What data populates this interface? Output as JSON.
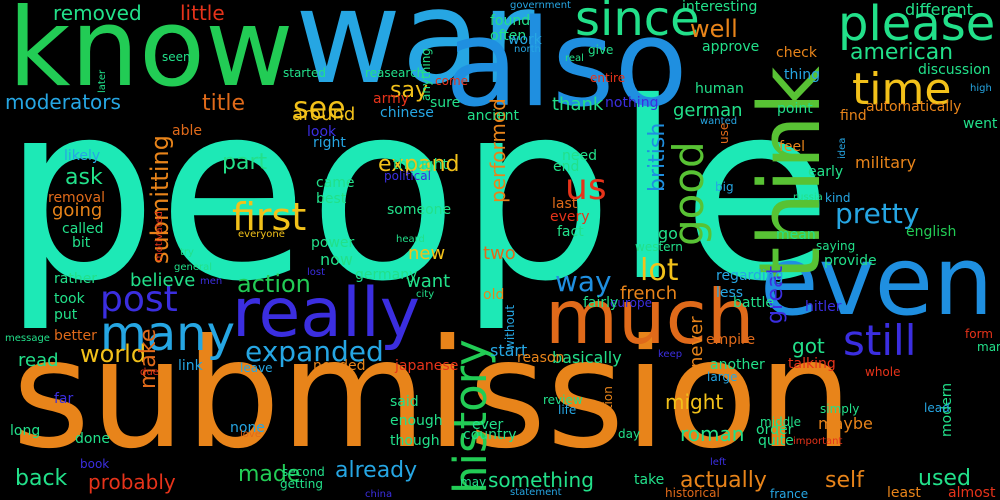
{
  "words": [
    {
      "text": "people",
      "color": "#1de9b6"
    },
    {
      "text": "submission",
      "color": "#e8841a"
    },
    {
      "text": "war",
      "color": "#26a6e3"
    },
    {
      "text": "know",
      "color": "#22cc55"
    },
    {
      "text": "also",
      "color": "#1f8fe0"
    },
    {
      "text": "even",
      "color": "#1f8fe0"
    },
    {
      "text": "think",
      "color": "#58c234"
    },
    {
      "text": "much",
      "color": "#e06a1a"
    },
    {
      "text": "really",
      "color": "#3b2ee0"
    },
    {
      "text": "since",
      "color": "#22e08a"
    },
    {
      "text": "please",
      "color": "#22e08a"
    },
    {
      "text": "time",
      "color": "#f2c11a"
    },
    {
      "text": "history",
      "color": "#22cc55"
    },
    {
      "text": "many",
      "color": "#26a6e3"
    },
    {
      "text": "post",
      "color": "#3b2ee0"
    },
    {
      "text": "still",
      "color": "#3b2ee0"
    },
    {
      "text": "first",
      "color": "#f2c11a"
    },
    {
      "text": "good",
      "color": "#58c234"
    },
    {
      "text": "us",
      "color": "#e6331a"
    },
    {
      "text": "see",
      "color": "#f2c11a"
    },
    {
      "text": "pretty",
      "color": "#26a6e3"
    },
    {
      "text": "expanded",
      "color": "#26a6e3"
    },
    {
      "text": "action",
      "color": "#22cc55"
    },
    {
      "text": "lot",
      "color": "#f2c11a"
    },
    {
      "text": "way",
      "color": "#1f8fe0"
    },
    {
      "text": "world",
      "color": "#f2c11a"
    },
    {
      "text": "moderators",
      "color": "#26a6e3"
    },
    {
      "text": "removed",
      "color": "#22e08a"
    },
    {
      "text": "little",
      "color": "#e6331a"
    },
    {
      "text": "well",
      "color": "#e8841a"
    },
    {
      "text": "american",
      "color": "#22e08a"
    },
    {
      "text": "say",
      "color": "#f2c11a"
    },
    {
      "text": "title",
      "color": "#e06a1a"
    },
    {
      "text": "ask",
      "color": "#22e08a"
    },
    {
      "text": "part",
      "color": "#22e08a"
    },
    {
      "text": "submitting",
      "color": "#e8841a"
    },
    {
      "text": "expand",
      "color": "#f2c11a"
    },
    {
      "text": "performed",
      "color": "#e8841a"
    },
    {
      "text": "british",
      "color": "#1f8fe0"
    },
    {
      "text": "german",
      "color": "#22e08a"
    },
    {
      "text": "thank",
      "color": "#22e08a"
    },
    {
      "text": "around",
      "color": "#f2c11a"
    },
    {
      "text": "going",
      "color": "#e8841a"
    },
    {
      "text": "believe",
      "color": "#22e08a"
    },
    {
      "text": "read",
      "color": "#22e08a"
    },
    {
      "text": "make",
      "color": "#e06a1a"
    },
    {
      "text": "back",
      "color": "#22e08a"
    },
    {
      "text": "probably",
      "color": "#e6331a"
    },
    {
      "text": "made",
      "color": "#22cc55"
    },
    {
      "text": "already",
      "color": "#26a6e3"
    },
    {
      "text": "something",
      "color": "#22e08a"
    },
    {
      "text": "actually",
      "color": "#e8841a"
    },
    {
      "text": "self",
      "color": "#e8841a"
    },
    {
      "text": "used",
      "color": "#22e08a"
    },
    {
      "text": "might",
      "color": "#f2c11a"
    },
    {
      "text": "roman",
      "color": "#22e08a"
    },
    {
      "text": "great",
      "color": "#3b2ee0"
    },
    {
      "text": "never",
      "color": "#e8841a"
    },
    {
      "text": "got",
      "color": "#22e08a"
    },
    {
      "text": "french",
      "color": "#e8841a"
    },
    {
      "text": "want",
      "color": "#22e08a"
    },
    {
      "text": "two",
      "color": "#e06a1a"
    },
    {
      "text": "now",
      "color": "#22e08a"
    },
    {
      "text": "new",
      "color": "#f2c11a"
    },
    {
      "text": "go",
      "color": "#22e08a"
    },
    {
      "text": "military",
      "color": "#e8841a"
    },
    {
      "text": "different",
      "color": "#22e08a"
    },
    {
      "text": "discussion",
      "color": "#22e08a"
    },
    {
      "text": "english",
      "color": "#22cc55"
    },
    {
      "text": "basically",
      "color": "#22e08a"
    },
    {
      "text": "another",
      "color": "#22e08a"
    },
    {
      "text": "hitler",
      "color": "#3b2ee0"
    },
    {
      "text": "empire",
      "color": "#e06a1a"
    },
    {
      "text": "battle",
      "color": "#22e08a"
    },
    {
      "text": "maybe",
      "color": "#e8841a"
    },
    {
      "text": "order",
      "color": "#22e08a"
    },
    {
      "text": "quite",
      "color": "#22e08a"
    },
    {
      "text": "modern",
      "color": "#22e08a"
    },
    {
      "text": "least",
      "color": "#e8841a"
    },
    {
      "text": "almost",
      "color": "#e6331a"
    },
    {
      "text": "found",
      "color": "#22e08a"
    },
    {
      "text": "often",
      "color": "#22e08a"
    },
    {
      "text": "interesting",
      "color": "#22e08a"
    },
    {
      "text": "approve",
      "color": "#22e08a"
    },
    {
      "text": "check",
      "color": "#e8841a"
    },
    {
      "text": "thing",
      "color": "#26a6e3"
    },
    {
      "text": "point",
      "color": "#22e08a"
    },
    {
      "text": "find",
      "color": "#e8841a"
    },
    {
      "text": "feel",
      "color": "#e8841a"
    },
    {
      "text": "mean",
      "color": "#22e08a"
    },
    {
      "text": "provide",
      "color": "#22e08a"
    },
    {
      "text": "regarding",
      "color": "#26a6e3"
    },
    {
      "text": "less",
      "color": "#26a6e3"
    },
    {
      "text": "went",
      "color": "#22e08a"
    },
    {
      "text": "high",
      "color": "#26a6e3"
    },
    {
      "text": "automatically",
      "color": "#e8841a"
    },
    {
      "text": "human",
      "color": "#22e08a"
    },
    {
      "text": "wanted",
      "color": "#26a6e3"
    },
    {
      "text": "use",
      "color": "#e06a1a"
    },
    {
      "text": "idea",
      "color": "#26a6e3"
    },
    {
      "text": "early",
      "color": "#22e08a"
    },
    {
      "text": "kind",
      "color": "#26a6e3"
    },
    {
      "text": "saying",
      "color": "#22e08a"
    },
    {
      "text": "big",
      "color": "#26a6e3"
    },
    {
      "text": "russia",
      "color": "#22e08a"
    },
    {
      "text": "western",
      "color": "#22e08a"
    },
    {
      "text": "europe",
      "color": "#3b2ee0"
    },
    {
      "text": "fairly",
      "color": "#22e08a"
    },
    {
      "text": "keep",
      "color": "#3b2ee0"
    },
    {
      "text": "talking",
      "color": "#e6331a"
    },
    {
      "text": "large",
      "color": "#26a6e3"
    },
    {
      "text": "whole",
      "color": "#e6331a"
    },
    {
      "text": "simply",
      "color": "#22e08a"
    },
    {
      "text": "lead",
      "color": "#26a6e3"
    },
    {
      "text": "form",
      "color": "#e6331a"
    },
    {
      "text": "man",
      "color": "#22e08a"
    },
    {
      "text": "life",
      "color": "#26a6e3"
    },
    {
      "text": "review",
      "color": "#22e08a"
    },
    {
      "text": "middle",
      "color": "#22e08a"
    },
    {
      "text": "day",
      "color": "#22e08a"
    },
    {
      "text": "important",
      "color": "#e6331a"
    },
    {
      "text": "question",
      "color": "#e8841a"
    },
    {
      "text": "take",
      "color": "#22e08a"
    },
    {
      "text": "left",
      "color": "#3b2ee0"
    },
    {
      "text": "historical",
      "color": "#e06a1a"
    },
    {
      "text": "france",
      "color": "#26a6e3"
    },
    {
      "text": "statement",
      "color": "#26a6e3"
    },
    {
      "text": "may",
      "color": "#22e08a"
    },
    {
      "text": "getting",
      "color": "#22e08a"
    },
    {
      "text": "china",
      "color": "#3b2ee0"
    },
    {
      "text": "second",
      "color": "#22e08a"
    },
    {
      "text": "book",
      "color": "#3b2ee0"
    },
    {
      "text": "long",
      "color": "#22e08a"
    },
    {
      "text": "far",
      "color": "#3b2ee0"
    },
    {
      "text": "done",
      "color": "#22e08a"
    },
    {
      "text": "none",
      "color": "#26a6e3"
    },
    {
      "text": "love",
      "color": "#e06a1a"
    },
    {
      "text": "said",
      "color": "#22e08a"
    },
    {
      "text": "enough",
      "color": "#22e08a"
    },
    {
      "text": "though",
      "color": "#22e08a"
    },
    {
      "text": "ever",
      "color": "#22e08a"
    },
    {
      "text": "country",
      "color": "#22e08a"
    },
    {
      "text": "japanese",
      "color": "#e6331a"
    },
    {
      "text": "needed",
      "color": "#e8841a"
    },
    {
      "text": "leave",
      "color": "#26a6e3"
    },
    {
      "text": "start",
      "color": "#26a6e3"
    },
    {
      "text": "reason",
      "color": "#e8841a"
    },
    {
      "text": "without",
      "color": "#26a6e3"
    },
    {
      "text": "old",
      "color": "#e8841a"
    },
    {
      "text": "link",
      "color": "#26a6e3"
    },
    {
      "text": "due",
      "color": "#e6331a"
    },
    {
      "text": "message",
      "color": "#22e08a"
    },
    {
      "text": "better",
      "color": "#e06a1a"
    },
    {
      "text": "took",
      "color": "#22e08a"
    },
    {
      "text": "put",
      "color": "#22e08a"
    },
    {
      "text": "rather",
      "color": "#22e08a"
    },
    {
      "text": "men",
      "color": "#3b2ee0"
    },
    {
      "text": "general",
      "color": "#22e08a"
    },
    {
      "text": "try",
      "color": "#22e08a"
    },
    {
      "text": "lost",
      "color": "#3b2ee0"
    },
    {
      "text": "city",
      "color": "#22e08a"
    },
    {
      "text": "germany",
      "color": "#22e08a"
    },
    {
      "text": "power",
      "color": "#22e08a"
    },
    {
      "text": "heard",
      "color": "#22e08a"
    },
    {
      "text": "everyone",
      "color": "#f2c11a"
    },
    {
      "text": "someone",
      "color": "#22e08a"
    },
    {
      "text": "called",
      "color": "#22e08a"
    },
    {
      "text": "bit",
      "color": "#22e08a"
    },
    {
      "text": "motivated",
      "color": "#e6331a"
    },
    {
      "text": "removal",
      "color": "#e06a1a"
    },
    {
      "text": "likely",
      "color": "#26a6e3"
    },
    {
      "text": "able",
      "color": "#e06a1a"
    },
    {
      "text": "look",
      "color": "#3b2ee0"
    },
    {
      "text": "right",
      "color": "#26a6e3"
    },
    {
      "text": "came",
      "color": "#22e08a"
    },
    {
      "text": "best",
      "color": "#22e08a"
    },
    {
      "text": "thought",
      "color": "#22e08a"
    },
    {
      "text": "political",
      "color": "#3b2ee0"
    },
    {
      "text": "need",
      "color": "#22e08a"
    },
    {
      "text": "end",
      "color": "#22e08a"
    },
    {
      "text": "last",
      "color": "#e06a1a"
    },
    {
      "text": "every",
      "color": "#e6331a"
    },
    {
      "text": "fact",
      "color": "#22e08a"
    },
    {
      "text": "army",
      "color": "#e6331a"
    },
    {
      "text": "started",
      "color": "#22e08a"
    },
    {
      "text": "reasearch",
      "color": "#22e08a"
    },
    {
      "text": "sure",
      "color": "#22e08a"
    },
    {
      "text": "chinese",
      "color": "#26a6e3"
    },
    {
      "text": "ancient",
      "color": "#22e08a"
    },
    {
      "text": "come",
      "color": "#e6331a"
    },
    {
      "text": "anything",
      "color": "#22e08a"
    },
    {
      "text": "government",
      "color": "#26a6e3"
    },
    {
      "text": "work",
      "color": "#26a6e3"
    },
    {
      "text": "north",
      "color": "#26a6e3"
    },
    {
      "text": "real",
      "color": "#22e08a"
    },
    {
      "text": "give",
      "color": "#22e08a"
    },
    {
      "text": "entire",
      "color": "#e6331a"
    },
    {
      "text": "nothing",
      "color": "#3b2ee0"
    },
    {
      "text": "seen",
      "color": "#22e08a"
    },
    {
      "text": "later",
      "color": "#22e08a"
    }
  ]
}
